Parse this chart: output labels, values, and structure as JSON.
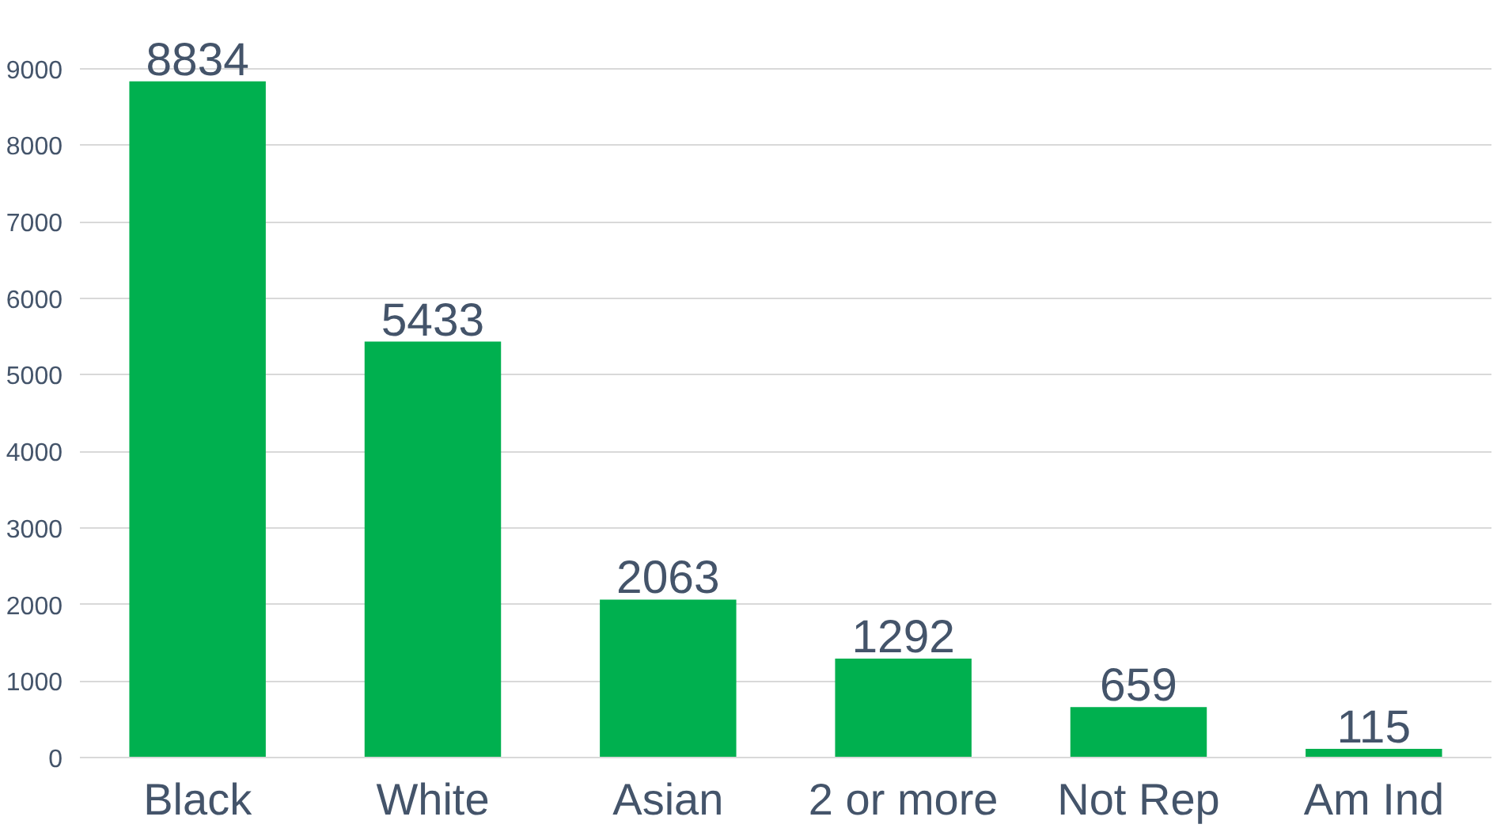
{
  "chart_data": {
    "type": "bar",
    "categories": [
      "Black",
      "White",
      "Asian",
      "2 or more",
      "Not Rep",
      "Am Ind"
    ],
    "values": [
      8834,
      5433,
      2063,
      1292,
      659,
      115
    ],
    "color": "#00b04f",
    "ylim": [
      0,
      9000
    ],
    "yticks": [
      0,
      1000,
      2000,
      3000,
      4000,
      5000,
      6000,
      7000,
      8000,
      9000
    ],
    "grid": "y",
    "data_labels": true
  }
}
